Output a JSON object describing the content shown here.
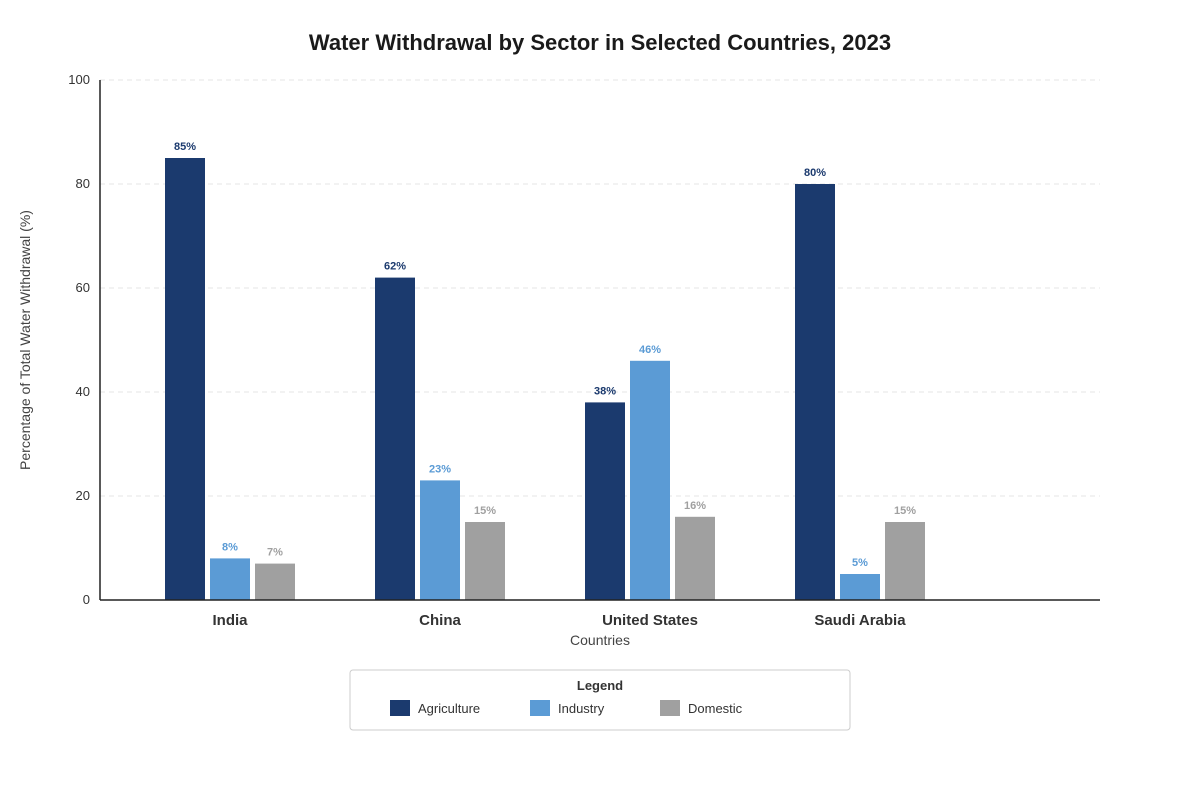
{
  "chart_data": {
    "type": "bar",
    "title": "Water Withdrawal by Sector in Selected Countries, 2023",
    "xlabel": "Countries",
    "ylabel": "Percentage of Total Water Withdrawal (%)",
    "ylim": [
      0,
      100
    ],
    "yticks": [
      0,
      20,
      40,
      60,
      80,
      100
    ],
    "grid": true,
    "categories": [
      "India",
      "China",
      "United States",
      "Saudi Arabia"
    ],
    "series": [
      {
        "name": "Agriculture",
        "color": "#1b3a6e",
        "values": [
          85,
          62,
          38,
          80
        ],
        "labels": [
          "85%",
          "62%",
          "38%",
          "80%"
        ]
      },
      {
        "name": "Industry",
        "color": "#5b9bd5",
        "values": [
          8,
          23,
          46,
          5
        ],
        "labels": [
          "8%",
          "23%",
          "46%",
          "5%"
        ]
      },
      {
        "name": "Domestic",
        "color": "#a0a0a0",
        "values": [
          7,
          15,
          16,
          15
        ],
        "labels": [
          "7%",
          "15%",
          "16%",
          "15%"
        ]
      }
    ],
    "legend": {
      "title": "Legend",
      "placement": "bottom-center"
    }
  }
}
